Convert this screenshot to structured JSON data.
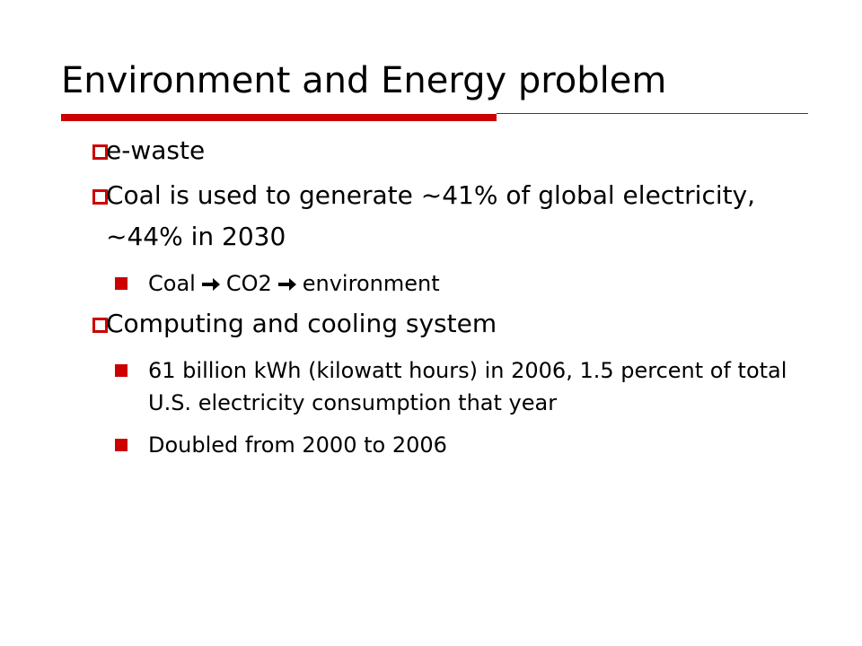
{
  "title": "Environment and Energy problem",
  "bullets": [
    {
      "text": "e-waste"
    },
    {
      "text": "Coal is used to generate ~41% of global electricity, ~44% in 2030",
      "children": [
        {
          "parts": [
            "Coal",
            "CO2",
            "environment"
          ]
        }
      ]
    },
    {
      "text": "Computing and cooling system",
      "children": [
        {
          "text": "61 billion kWh (kilowatt hours) in 2006, 1.5 percent of total U.S. electricity consumption that year"
        },
        {
          "text": "Doubled from 2000 to 2006"
        }
      ]
    }
  ]
}
